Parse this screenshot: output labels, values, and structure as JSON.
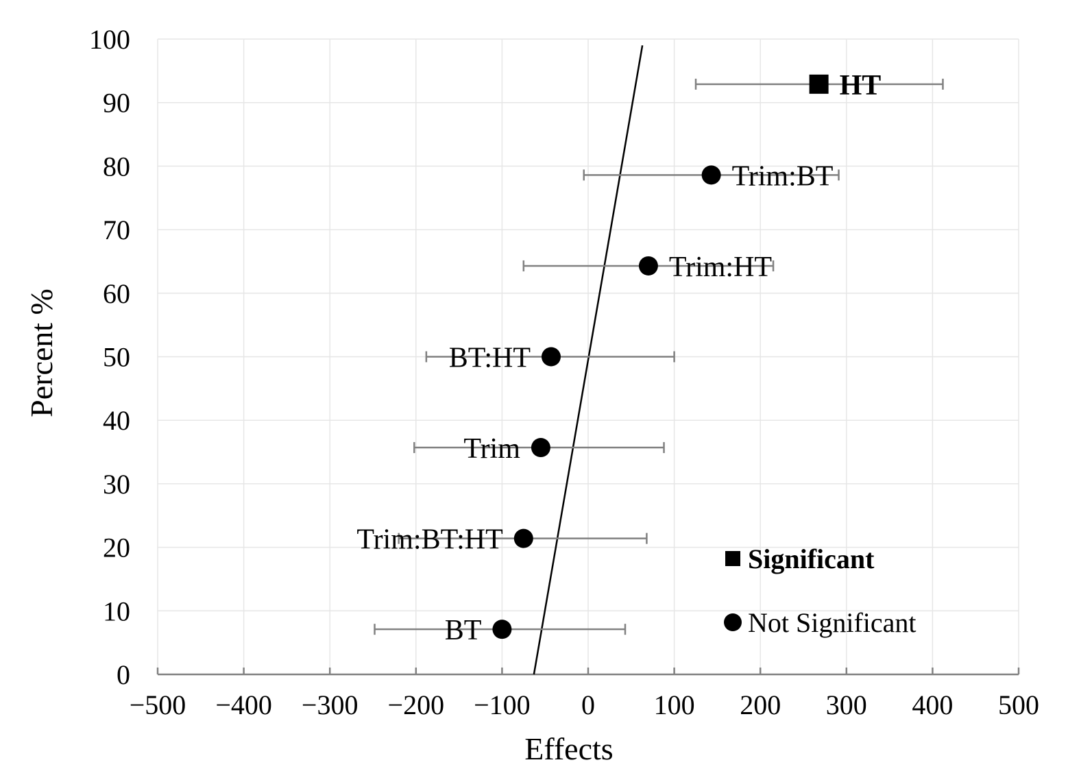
{
  "chart_data": {
    "type": "scatter",
    "title": "",
    "xlabel": "Effects",
    "ylabel": "Percent %",
    "xlim": [
      -500,
      500
    ],
    "ylim": [
      0,
      100
    ],
    "xticks": [
      -500,
      -400,
      -300,
      -200,
      -100,
      0,
      100,
      200,
      300,
      400,
      500
    ],
    "xtick_labels": [
      "−500",
      "−400",
      "−300",
      "−200",
      "−100",
      "0",
      "100",
      "200",
      "300",
      "400",
      "500"
    ],
    "yticks": [
      0,
      10,
      20,
      30,
      40,
      50,
      60,
      70,
      80,
      90,
      100
    ],
    "ytick_labels": [
      "0",
      "10",
      "20",
      "30",
      "40",
      "50",
      "60",
      "70",
      "80",
      "90",
      "100"
    ],
    "grid": true,
    "points": [
      {
        "label": "HT",
        "x": 268,
        "y": 92.9,
        "err_low": 125,
        "err_high": 412,
        "significant": true,
        "label_side": "right"
      },
      {
        "label": "Trim:BT",
        "x": 143,
        "y": 78.6,
        "err_low": -5,
        "err_high": 291,
        "significant": false,
        "label_side": "right"
      },
      {
        "label": "Trim:HT",
        "x": 70,
        "y": 64.3,
        "err_low": -75,
        "err_high": 215,
        "significant": false,
        "label_side": "right"
      },
      {
        "label": "BT:HT",
        "x": -43,
        "y": 50.0,
        "err_low": -188,
        "err_high": 100,
        "significant": false,
        "label_side": "left"
      },
      {
        "label": "Trim",
        "x": -55,
        "y": 35.7,
        "err_low": -202,
        "err_high": 88,
        "significant": false,
        "label_side": "left"
      },
      {
        "label": "Trim:BT:HT",
        "x": -75,
        "y": 21.4,
        "err_low": -220,
        "err_high": 68,
        "significant": false,
        "label_side": "left"
      },
      {
        "label": "BT",
        "x": -100,
        "y": 7.1,
        "err_low": -248,
        "err_high": 43,
        "significant": false,
        "label_side": "left"
      }
    ],
    "reference_line": {
      "from": {
        "x": -63,
        "y": 0
      },
      "to": {
        "x": 63,
        "y": 99
      }
    },
    "legend": {
      "placement": "bottom-right",
      "entries": [
        {
          "label": "Significant",
          "marker": "square",
          "bold": true
        },
        {
          "label": "Not Significant",
          "marker": "circle",
          "bold": false
        }
      ]
    },
    "colors": {
      "marker": "#000000",
      "error_bar": "#808080",
      "grid": "#e6e6e6",
      "axis": "#808080"
    }
  }
}
